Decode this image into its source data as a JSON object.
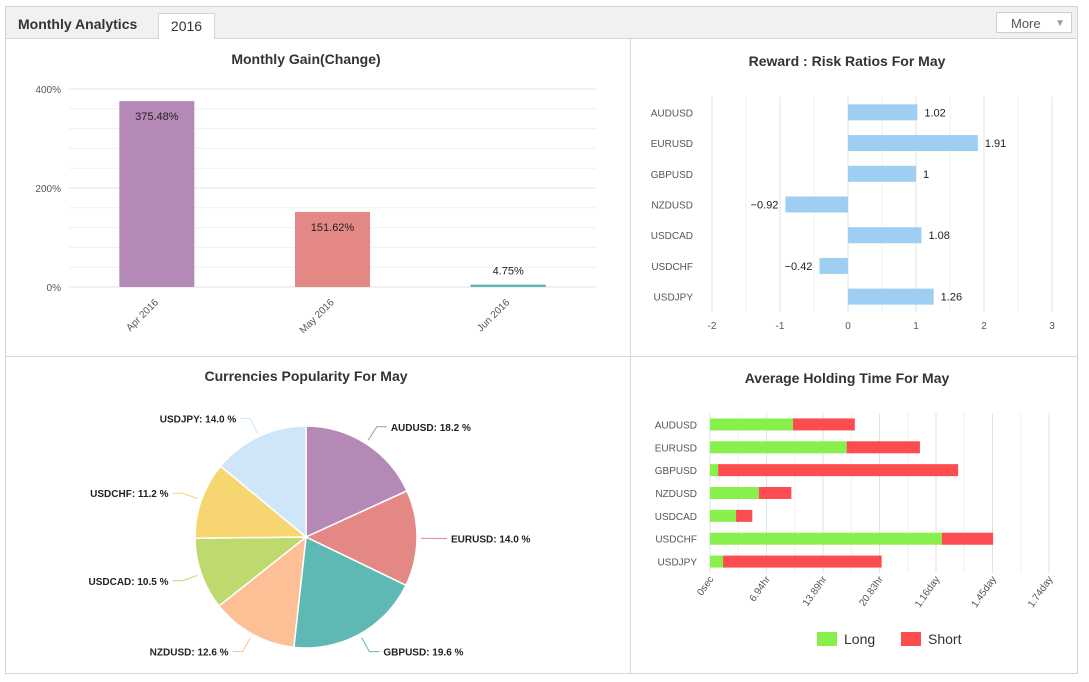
{
  "header": {
    "title": "Monthly Analytics",
    "tab_label": "2016",
    "more_label": "More"
  },
  "chart_data": [
    {
      "type": "bar",
      "title": "Monthly Gain(Change)",
      "categories": [
        "Apr 2016",
        "May 2016",
        "Jun 2016"
      ],
      "values": [
        375.48,
        151.62,
        4.75
      ],
      "value_labels": [
        "375.48%",
        "151.62%",
        "4.75%"
      ],
      "colors": [
        "#b589b5",
        "#e48885",
        "#5eb3b3"
      ],
      "yticks": [
        "0%",
        "200%",
        "400%"
      ],
      "ylim": [
        0,
        400
      ],
      "grid": true
    },
    {
      "type": "bar",
      "title": "Reward : Risk Ratios For May",
      "categories": [
        "AUDUSD",
        "EURUSD",
        "GBPUSD",
        "NZDUSD",
        "USDCAD",
        "USDCHF",
        "USDJPY"
      ],
      "values": [
        1.02,
        1.91,
        1,
        -0.92,
        1.08,
        -0.42,
        1.26
      ],
      "value_labels": [
        "1.02",
        "1.91",
        "1",
        "−0.92",
        "1.08",
        "−0.42",
        "1.26"
      ],
      "orientation": "horizontal",
      "color": "#9ecff2",
      "xticks": [
        "-2",
        "-1",
        "0",
        "1",
        "2",
        "3"
      ],
      "xlim": [
        -2,
        3
      ],
      "grid": true
    },
    {
      "type": "pie",
      "title": "Currencies Popularity For May",
      "slices": [
        {
          "label": "AUDUSD: 18.2 %",
          "value": 18.2,
          "color": "#b589b5"
        },
        {
          "label": "EURUSD: 14.0 %",
          "value": 14.0,
          "color": "#e48885"
        },
        {
          "label": "GBPUSD: 19.6 %",
          "value": 19.6,
          "color": "#5eb9b4"
        },
        {
          "label": "NZDUSD: 12.6 %",
          "value": 12.6,
          "color": "#fdbf95"
        },
        {
          "label": "USDCAD: 10.5 %",
          "value": 10.5,
          "color": "#bed96d"
        },
        {
          "label": "USDCHF: 11.2 %",
          "value": 11.2,
          "color": "#f7d672"
        },
        {
          "label": "USDJPY: 14.0 %",
          "value": 14.0,
          "color": "#cfe5f8"
        }
      ]
    },
    {
      "type": "bar",
      "title": "Average Holding Time For May",
      "orientation": "horizontal",
      "stacked": true,
      "categories": [
        "AUDUSD",
        "EURUSD",
        "GBPUSD",
        "NZDUSD",
        "USDCAD",
        "USDCHF",
        "USDJPY"
      ],
      "x_unit": "hours",
      "series": [
        {
          "name": "Long",
          "color": "#88f04c",
          "values": [
            10.2,
            16.8,
            1.0,
            6.0,
            3.2,
            28.5,
            1.6
          ]
        },
        {
          "name": "Short",
          "color": "#fb4c4f",
          "values": [
            7.6,
            9.0,
            29.5,
            4.0,
            2.0,
            6.3,
            19.5
          ]
        }
      ],
      "xticks": [
        "0sec",
        "6.94hr",
        "13.89hr",
        "20.83hr",
        "1.16day",
        "1.45day",
        "1.74day"
      ],
      "xlim": [
        0,
        41.67
      ],
      "legend": "bottom",
      "grid": true
    }
  ]
}
